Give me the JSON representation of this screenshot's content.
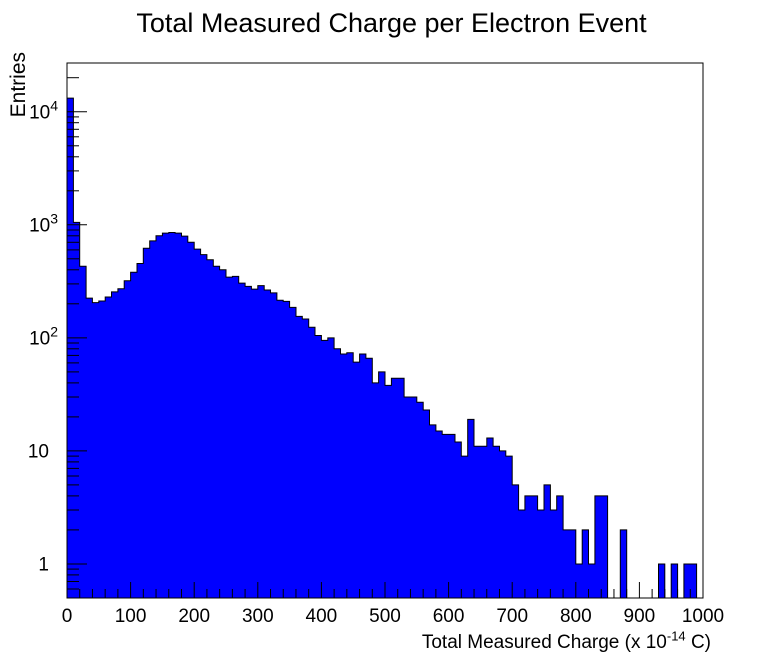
{
  "background": "#ffffff",
  "chart_data": {
    "type": "bar",
    "subtype": "histogram-log-y",
    "title": "Total Measured Charge per Electron Event",
    "grid": false,
    "legend": "none",
    "x_axis": {
      "label_prefix": "Total Measured Charge (x 10",
      "label_superscript": "-14",
      "label_suffix": " C)",
      "min": 0,
      "max": 1000,
      "major_tick_step": 100,
      "minor_tick_step": 20,
      "tick_labels": [
        "0",
        "100",
        "200",
        "300",
        "400",
        "500",
        "600",
        "700",
        "800",
        "900",
        "1000"
      ]
    },
    "y_axis": {
      "label": "Entries",
      "scale": "log",
      "min": 0.5,
      "max": 27000,
      "tick_values": [
        1,
        10,
        100,
        1000,
        10000
      ],
      "tick_labels": [
        {
          "text": "1",
          "exp": ""
        },
        {
          "text": "10",
          "exp": ""
        },
        {
          "text": "10",
          "exp": "2"
        },
        {
          "text": "10",
          "exp": "3"
        },
        {
          "text": "10",
          "exp": "4"
        }
      ]
    },
    "series": {
      "name": "total-measured-charge-histogram",
      "fill_color": "#0000ff",
      "line_color": "#000000",
      "bin_start": 0,
      "bin_width": 10,
      "counts": [
        13200,
        1050,
        430,
        225,
        205,
        212,
        230,
        255,
        272,
        320,
        380,
        455,
        620,
        720,
        800,
        845,
        855,
        845,
        795,
        700,
        610,
        545,
        490,
        430,
        400,
        345,
        350,
        305,
        285,
        270,
        290,
        265,
        250,
        215,
        210,
        186,
        155,
        147,
        124,
        105,
        95,
        100,
        80,
        72,
        74,
        61,
        72,
        66,
        40,
        50,
        38,
        44,
        44,
        30,
        30,
        27,
        23,
        17,
        15,
        14,
        14,
        12,
        9,
        19,
        11,
        11,
        13,
        11,
        10,
        9,
        5,
        3,
        4,
        4,
        3,
        5,
        3,
        4,
        2,
        2,
        1,
        2,
        1,
        4,
        4,
        0,
        0,
        2,
        0,
        0,
        0,
        0,
        0,
        1,
        0,
        1,
        0,
        1,
        1,
        0
      ]
    }
  }
}
